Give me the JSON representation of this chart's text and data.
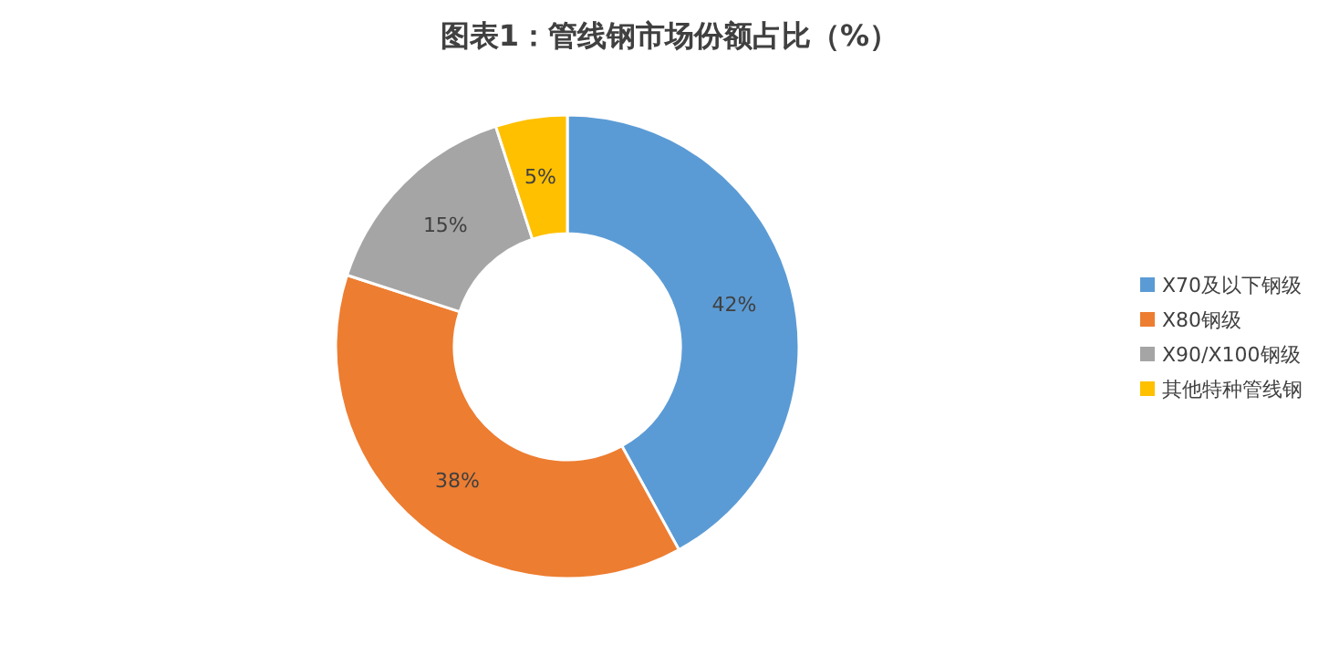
{
  "chart_data": {
    "type": "donut",
    "title": "图表1：管线钢市场份额占比（%）",
    "categories": [
      "X70及以下钢级",
      "X80钢级",
      "X90/X100钢级",
      "其他特种管线钢"
    ],
    "values": [
      42,
      38,
      15,
      5
    ],
    "value_labels": [
      "42%",
      "38%",
      "15%",
      "5%"
    ],
    "colors": [
      "#5b9bd5",
      "#ed7d31",
      "#a5a5a5",
      "#ffc000"
    ],
    "legend": "right"
  }
}
